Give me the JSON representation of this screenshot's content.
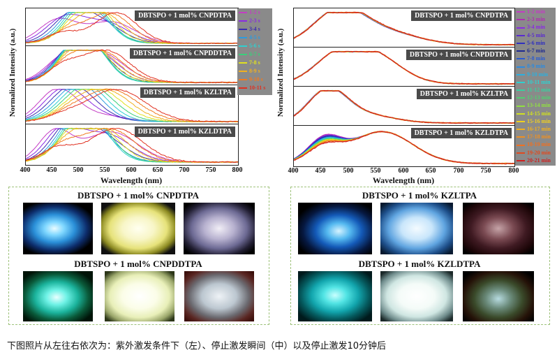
{
  "left_chart": {
    "ylabel": "Normalized Intensity (a.u.)",
    "xlabel": "Wavelength (nm)",
    "xticks": [
      "400",
      "450",
      "500",
      "550",
      "600",
      "650",
      "700",
      "750",
      "800"
    ],
    "panels": [
      "DBTSPO + 1 mol% CNPDTPA",
      "DBTSPO + 1 mol% CNPDDTPA",
      "DBTSPO + 1 mol% KZLTPA",
      "DBTSPO + 1 mol% KZLDTPA"
    ],
    "legend": [
      {
        "label": "1-2 s",
        "color": "#c43cc4"
      },
      {
        "label": "2-3 s",
        "color": "#8a2be2"
      },
      {
        "label": "3-4 s",
        "color": "#3b2bb0"
      },
      {
        "label": "4-5 s",
        "color": "#2b9be0"
      },
      {
        "label": "5-6 s",
        "color": "#2fd0d0"
      },
      {
        "label": "6-7 s",
        "color": "#39d07a"
      },
      {
        "label": "7-8 s",
        "color": "#e0e020"
      },
      {
        "label": "8-9 s",
        "color": "#f0b020"
      },
      {
        "label": "9-10 s",
        "color": "#f07a20"
      },
      {
        "label": "10-11 s",
        "color": "#e03020"
      }
    ]
  },
  "right_chart": {
    "ylabel": "Normalized Intensity (a.u.)",
    "xlabel": "Wavelength (nm)",
    "xticks": [
      "400",
      "450",
      "500",
      "550",
      "600",
      "650",
      "700",
      "750",
      "800"
    ],
    "panels": [
      "DBTSPO + 1 mol% CNPDTPA",
      "DBTSPO + 1 mol% CNPDDTPA",
      "DBTSPO + 1 mol% KZLTPA",
      "DBTSPO + 1 mol% KZLDTPA"
    ],
    "legend": [
      {
        "label": "1-2 min",
        "color": "#c43cc4"
      },
      {
        "label": "2-3 min",
        "color": "#b02cb0"
      },
      {
        "label": "3-4 min",
        "color": "#8a2be2"
      },
      {
        "label": "4-5 min",
        "color": "#5a2bd0"
      },
      {
        "label": "5-6 min",
        "color": "#3030c0"
      },
      {
        "label": "6-7 min",
        "color": "#1e2a90"
      },
      {
        "label": "7-8 min",
        "color": "#2a5ad0"
      },
      {
        "label": "8-9 min",
        "color": "#2b8ae0"
      },
      {
        "label": "9-10 min",
        "color": "#2bb0e0"
      },
      {
        "label": "10-11 min",
        "color": "#2fd0d0"
      },
      {
        "label": "11-12 min",
        "color": "#39d0a0"
      },
      {
        "label": "12-13 min",
        "color": "#50d070"
      },
      {
        "label": "13-14 min",
        "color": "#90e040"
      },
      {
        "label": "14-15 min",
        "color": "#d0e020"
      },
      {
        "label": "15-16 min",
        "color": "#f0d020"
      },
      {
        "label": "16-17 min",
        "color": "#f0b020"
      },
      {
        "label": "17-18 min",
        "color": "#f09020"
      },
      {
        "label": "18-19 min",
        "color": "#f07020"
      },
      {
        "label": "19-20 min",
        "color": "#e04a20"
      },
      {
        "label": "20-21 min",
        "color": "#d02020"
      }
    ]
  },
  "photos": [
    {
      "title": "DBTSPO + 1 mol% CNPDTPA",
      "images": [
        "blue-glow",
        "yellow-glow",
        "white-glow"
      ]
    },
    {
      "title": "DBTSPO + 1 mol% CNPDDTPA",
      "images": [
        "cyan-glow",
        "cream-glow",
        "white-glow"
      ]
    },
    {
      "title": "DBTSPO + 1 mol% KZLTPA",
      "images": [
        "blue-glow",
        "lightblue-glow",
        "faint-glow"
      ]
    },
    {
      "title": "DBTSPO + 1 mol% KZLDTPA",
      "images": [
        "teal-glow",
        "white-glow",
        "faint-glow"
      ]
    }
  ],
  "caption": "下图照片从左往右依次为：紫外激发条件下（左）、停止激发瞬间（中）以及停止激发10分钟后"
}
